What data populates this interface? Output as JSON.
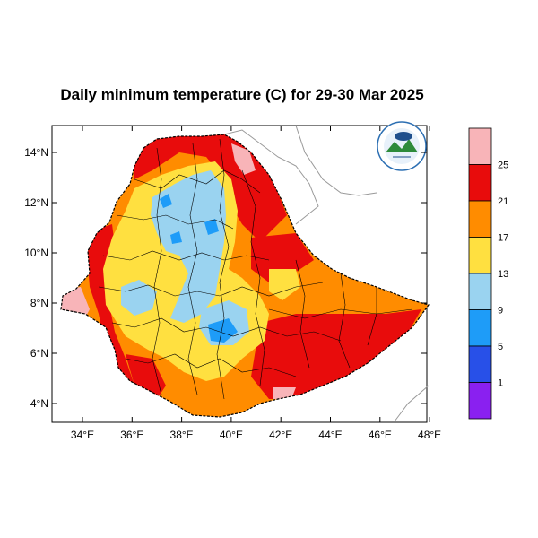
{
  "title": "Daily minimum temperature (C) for 29-30 Mar 2025",
  "x_ticks": [
    "34°E",
    "36°E",
    "38°E",
    "40°E",
    "42°E",
    "44°E",
    "46°E",
    "48°E"
  ],
  "y_ticks": [
    "14°N",
    "12°N",
    "10°N",
    "8°N",
    "6°N",
    "4°N"
  ],
  "colorbar": {
    "labels": [
      "25",
      "21",
      "17",
      "13",
      "9",
      "5",
      "1"
    ],
    "colors": [
      "#f8b4b8",
      "#e80c0c",
      "#ff8c00",
      "#ffe040",
      "#9ad3f0",
      "#1e9cf8",
      "#2850e8",
      "#8a20f0"
    ]
  },
  "logo": {
    "name": "meteorology-agency-logo"
  }
}
